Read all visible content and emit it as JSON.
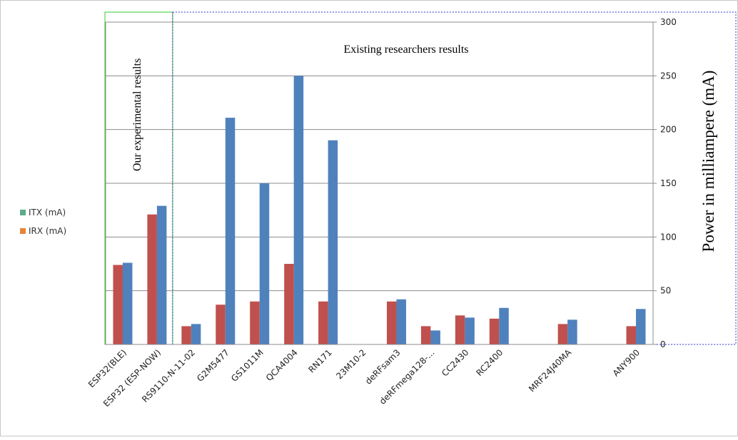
{
  "chart_data": {
    "type": "bar",
    "categories": [
      "ESP32(BLE)",
      "ESP32 (ESP-NOW)",
      "RS9110-N-11-02",
      "G2M5477",
      "GS1011M",
      "QCA4004",
      "RN171",
      "23M10-2",
      "deRFsam3",
      "deRFmega128-...",
      "CC2430",
      "RC2400",
      "",
      "MRF24J40MA",
      "",
      "ANY900"
    ],
    "series": [
      {
        "name": "IRX (mA)",
        "color": "#c0504d",
        "values": [
          74,
          121,
          17,
          37,
          40,
          75,
          40,
          0,
          40,
          17,
          27,
          24,
          0,
          19,
          0,
          17
        ]
      },
      {
        "name": "ITX (mA)",
        "color": "#4f81bd",
        "values": [
          76,
          129,
          19,
          211,
          150,
          250,
          190,
          0,
          42,
          13,
          25,
          34,
          0,
          23,
          0,
          33
        ]
      }
    ],
    "legend": [
      {
        "label": "ITX (mA)",
        "color": "#4bacc6",
        "swatch": "#5ea98a"
      },
      {
        "label": "IRX (mA)",
        "color": "#f79646",
        "swatch": "#e8833a"
      }
    ],
    "legend_placement": "left",
    "ylabel": "Power in milliampere (mA)",
    "ylim": [
      0,
      300
    ],
    "yticks": [
      0,
      50,
      100,
      150,
      200,
      250,
      300
    ],
    "y_axis_side": "right",
    "grid": true,
    "annotations": [
      {
        "text": "Our experimental results",
        "box_color": "#33cc33",
        "spans": [
          "ESP32(BLE)",
          "ESP32 (ESP-NOW)"
        ]
      },
      {
        "text": "Existing researchers results",
        "box_color": "#3333cc",
        "spans": [
          "RS9110-N-11-02",
          "ANY900"
        ]
      }
    ]
  }
}
